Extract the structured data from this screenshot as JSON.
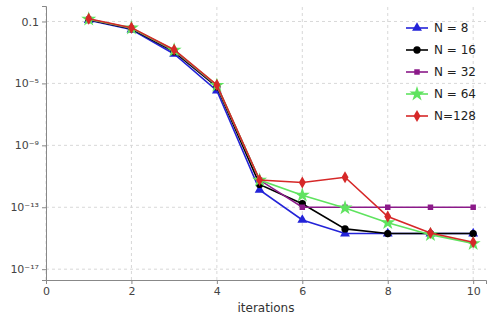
{
  "chart_data": {
    "type": "line",
    "x_label": "iterations",
    "x": [
      1,
      2,
      3,
      4,
      5,
      6,
      7,
      8,
      9,
      10
    ],
    "series": [
      {
        "name": "N = 8",
        "color": "#2323d8",
        "marker": "triangle",
        "values": [
          0.12,
          0.03,
          0.0008,
          3.4e-06,
          1.3e-12,
          1.5e-14,
          2e-15,
          2e-15,
          2e-15,
          2e-15
        ]
      },
      {
        "name": "N = 16",
        "color": "#000000",
        "marker": "circle",
        "values": [
          0.13,
          0.034,
          0.0011,
          6e-06,
          3e-12,
          1.7e-13,
          4e-15,
          2e-15,
          2e-15,
          2e-15
        ]
      },
      {
        "name": "N = 32",
        "color": "#8b1a89",
        "marker": "square",
        "values": [
          0.14,
          0.037,
          0.0013,
          7e-06,
          5.7e-12,
          1e-13,
          1e-13,
          1e-13,
          1e-13,
          1e-13
        ]
      },
      {
        "name": "N = 64",
        "color": "#5fe35f",
        "marker": "star",
        "values": [
          0.14,
          0.038,
          0.0014,
          7.5e-06,
          5.7e-12,
          6e-13,
          9e-14,
          1e-14,
          1.7e-15,
          4.5e-16
        ]
      },
      {
        "name": "N=128",
        "color": "#d62828",
        "marker": "diamond",
        "values": [
          0.15,
          0.04,
          0.0015,
          8e-06,
          5.7e-12,
          4e-12,
          8.7e-12,
          2.5e-14,
          2.2e-15,
          5.5e-16
        ]
      }
    ],
    "xlim": [
      0,
      10.3
    ],
    "xticks": [
      0,
      2,
      4,
      6,
      8,
      10
    ],
    "ylim": [
      2e-18,
      1
    ],
    "yticks": [
      0.1,
      {
        "value": 1e-05,
        "label": "10⁻⁵"
      },
      {
        "value": 1e-09,
        "label": "10⁻⁹"
      },
      {
        "value": 1e-13,
        "label": "10⁻¹³"
      },
      {
        "value": 1e-17,
        "label": "10⁻¹⁷"
      }
    ],
    "log": "y",
    "grid": true,
    "legend": "upper right"
  }
}
